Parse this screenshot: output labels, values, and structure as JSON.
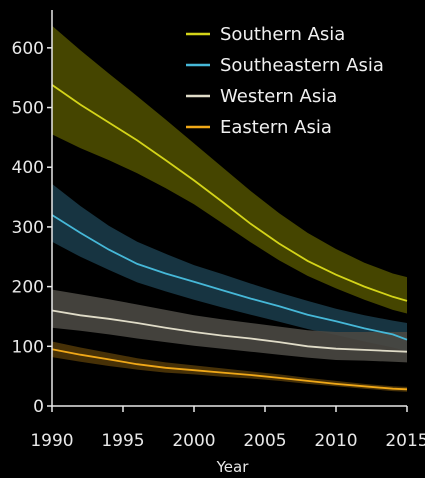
{
  "chart_data": {
    "type": "line",
    "title": "",
    "xlabel": "Year",
    "ylabel": "",
    "xlim": [
      1990,
      2015
    ],
    "ylim": [
      0,
      650
    ],
    "x_ticks": [
      1990,
      1995,
      2000,
      2005,
      2010,
      2015
    ],
    "y_ticks": [
      0,
      100,
      200,
      300,
      400,
      500,
      600
    ],
    "grid": false,
    "legend_position": "top-right",
    "x": [
      1990,
      1992,
      1994,
      1996,
      1998,
      2000,
      2002,
      2004,
      2006,
      2008,
      2010,
      2012,
      2014,
      2015
    ],
    "series": [
      {
        "name": "Southern Asia",
        "color": "#d4d419",
        "band_color": "#4d4d00",
        "values": [
          538,
          505,
          475,
          445,
          412,
          378,
          342,
          305,
          272,
          243,
          220,
          200,
          183,
          176
        ],
        "lower": [
          455,
          432,
          412,
          390,
          365,
          338,
          306,
          274,
          244,
          218,
          197,
          178,
          161,
          155
        ],
        "upper": [
          637,
          596,
          557,
          519,
          480,
          440,
          400,
          360,
          323,
          290,
          263,
          240,
          222,
          216
        ]
      },
      {
        "name": "Southeastern Asia",
        "color": "#46b8d8",
        "band_color": "#1a3a48",
        "values": [
          320,
          290,
          262,
          238,
          222,
          208,
          194,
          180,
          167,
          153,
          142,
          130,
          120,
          111
        ],
        "lower": [
          275,
          250,
          228,
          207,
          192,
          178,
          165,
          153,
          141,
          129,
          119,
          108,
          98,
          92
        ],
        "upper": [
          372,
          335,
          302,
          275,
          255,
          236,
          221,
          205,
          190,
          176,
          163,
          152,
          143,
          139
        ]
      },
      {
        "name": "Western Asia",
        "color": "#e0dcc8",
        "band_color": "#4a4843",
        "values": [
          160,
          152,
          146,
          139,
          131,
          124,
          118,
          113,
          107,
          100,
          96,
          94,
          92,
          91
        ],
        "lower": [
          131,
          126,
          120,
          113,
          107,
          101,
          96,
          91,
          86,
          81,
          77,
          76,
          74,
          73
        ],
        "upper": [
          195,
          187,
          179,
          170,
          161,
          152,
          145,
          139,
          133,
          127,
          124,
          124,
          124,
          124
        ]
      },
      {
        "name": "Eastern Asia",
        "color": "#f0a818",
        "band_color": "#4f3608",
        "values": [
          95,
          86,
          78,
          70,
          64,
          60,
          56,
          52,
          47,
          42,
          37,
          33,
          29,
          28
        ],
        "lower": [
          82,
          74,
          67,
          61,
          56,
          53,
          49,
          46,
          42,
          37,
          33,
          29,
          25,
          24
        ],
        "upper": [
          108,
          98,
          89,
          80,
          73,
          68,
          63,
          58,
          53,
          47,
          42,
          37,
          33,
          32
        ]
      }
    ]
  }
}
